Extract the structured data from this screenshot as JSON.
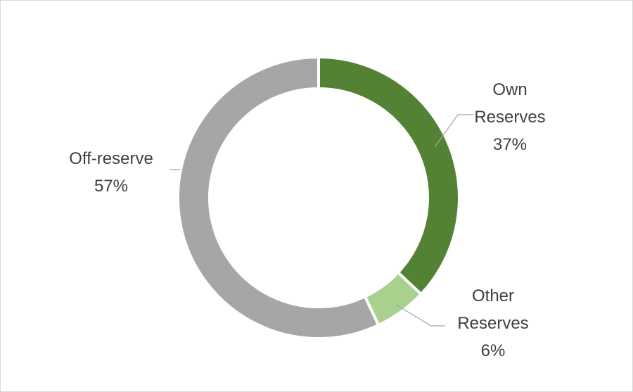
{
  "chart_data": {
    "type": "donut",
    "categories": [
      "Own Reserves",
      "Other Reserves",
      "Off-reserve"
    ],
    "values": [
      37,
      6,
      57
    ],
    "value_labels": [
      "37%",
      "6%",
      "57%"
    ],
    "colors": [
      "#548235",
      "#a9d18e",
      "#a6a6a6"
    ]
  }
}
